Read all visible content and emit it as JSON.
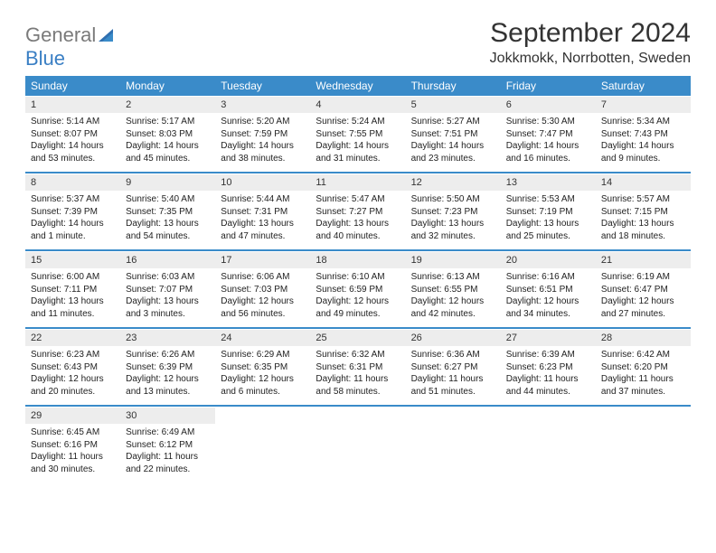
{
  "logo": {
    "general": "General",
    "blue": "Blue"
  },
  "title": "September 2024",
  "location": "Jokkmokk, Norrbotten, Sweden",
  "colors": {
    "header_bg": "#3a8bc9",
    "daynum_bg": "#ededed",
    "text": "#222222"
  },
  "weekdays": [
    "Sunday",
    "Monday",
    "Tuesday",
    "Wednesday",
    "Thursday",
    "Friday",
    "Saturday"
  ],
  "weeks": [
    [
      {
        "n": "1",
        "sr": "Sunrise: 5:14 AM",
        "ss": "Sunset: 8:07 PM",
        "dl": "Daylight: 14 hours and 53 minutes."
      },
      {
        "n": "2",
        "sr": "Sunrise: 5:17 AM",
        "ss": "Sunset: 8:03 PM",
        "dl": "Daylight: 14 hours and 45 minutes."
      },
      {
        "n": "3",
        "sr": "Sunrise: 5:20 AM",
        "ss": "Sunset: 7:59 PM",
        "dl": "Daylight: 14 hours and 38 minutes."
      },
      {
        "n": "4",
        "sr": "Sunrise: 5:24 AM",
        "ss": "Sunset: 7:55 PM",
        "dl": "Daylight: 14 hours and 31 minutes."
      },
      {
        "n": "5",
        "sr": "Sunrise: 5:27 AM",
        "ss": "Sunset: 7:51 PM",
        "dl": "Daylight: 14 hours and 23 minutes."
      },
      {
        "n": "6",
        "sr": "Sunrise: 5:30 AM",
        "ss": "Sunset: 7:47 PM",
        "dl": "Daylight: 14 hours and 16 minutes."
      },
      {
        "n": "7",
        "sr": "Sunrise: 5:34 AM",
        "ss": "Sunset: 7:43 PM",
        "dl": "Daylight: 14 hours and 9 minutes."
      }
    ],
    [
      {
        "n": "8",
        "sr": "Sunrise: 5:37 AM",
        "ss": "Sunset: 7:39 PM",
        "dl": "Daylight: 14 hours and 1 minute."
      },
      {
        "n": "9",
        "sr": "Sunrise: 5:40 AM",
        "ss": "Sunset: 7:35 PM",
        "dl": "Daylight: 13 hours and 54 minutes."
      },
      {
        "n": "10",
        "sr": "Sunrise: 5:44 AM",
        "ss": "Sunset: 7:31 PM",
        "dl": "Daylight: 13 hours and 47 minutes."
      },
      {
        "n": "11",
        "sr": "Sunrise: 5:47 AM",
        "ss": "Sunset: 7:27 PM",
        "dl": "Daylight: 13 hours and 40 minutes."
      },
      {
        "n": "12",
        "sr": "Sunrise: 5:50 AM",
        "ss": "Sunset: 7:23 PM",
        "dl": "Daylight: 13 hours and 32 minutes."
      },
      {
        "n": "13",
        "sr": "Sunrise: 5:53 AM",
        "ss": "Sunset: 7:19 PM",
        "dl": "Daylight: 13 hours and 25 minutes."
      },
      {
        "n": "14",
        "sr": "Sunrise: 5:57 AM",
        "ss": "Sunset: 7:15 PM",
        "dl": "Daylight: 13 hours and 18 minutes."
      }
    ],
    [
      {
        "n": "15",
        "sr": "Sunrise: 6:00 AM",
        "ss": "Sunset: 7:11 PM",
        "dl": "Daylight: 13 hours and 11 minutes."
      },
      {
        "n": "16",
        "sr": "Sunrise: 6:03 AM",
        "ss": "Sunset: 7:07 PM",
        "dl": "Daylight: 13 hours and 3 minutes."
      },
      {
        "n": "17",
        "sr": "Sunrise: 6:06 AM",
        "ss": "Sunset: 7:03 PM",
        "dl": "Daylight: 12 hours and 56 minutes."
      },
      {
        "n": "18",
        "sr": "Sunrise: 6:10 AM",
        "ss": "Sunset: 6:59 PM",
        "dl": "Daylight: 12 hours and 49 minutes."
      },
      {
        "n": "19",
        "sr": "Sunrise: 6:13 AM",
        "ss": "Sunset: 6:55 PM",
        "dl": "Daylight: 12 hours and 42 minutes."
      },
      {
        "n": "20",
        "sr": "Sunrise: 6:16 AM",
        "ss": "Sunset: 6:51 PM",
        "dl": "Daylight: 12 hours and 34 minutes."
      },
      {
        "n": "21",
        "sr": "Sunrise: 6:19 AM",
        "ss": "Sunset: 6:47 PM",
        "dl": "Daylight: 12 hours and 27 minutes."
      }
    ],
    [
      {
        "n": "22",
        "sr": "Sunrise: 6:23 AM",
        "ss": "Sunset: 6:43 PM",
        "dl": "Daylight: 12 hours and 20 minutes."
      },
      {
        "n": "23",
        "sr": "Sunrise: 6:26 AM",
        "ss": "Sunset: 6:39 PM",
        "dl": "Daylight: 12 hours and 13 minutes."
      },
      {
        "n": "24",
        "sr": "Sunrise: 6:29 AM",
        "ss": "Sunset: 6:35 PM",
        "dl": "Daylight: 12 hours and 6 minutes."
      },
      {
        "n": "25",
        "sr": "Sunrise: 6:32 AM",
        "ss": "Sunset: 6:31 PM",
        "dl": "Daylight: 11 hours and 58 minutes."
      },
      {
        "n": "26",
        "sr": "Sunrise: 6:36 AM",
        "ss": "Sunset: 6:27 PM",
        "dl": "Daylight: 11 hours and 51 minutes."
      },
      {
        "n": "27",
        "sr": "Sunrise: 6:39 AM",
        "ss": "Sunset: 6:23 PM",
        "dl": "Daylight: 11 hours and 44 minutes."
      },
      {
        "n": "28",
        "sr": "Sunrise: 6:42 AM",
        "ss": "Sunset: 6:20 PM",
        "dl": "Daylight: 11 hours and 37 minutes."
      }
    ],
    [
      {
        "n": "29",
        "sr": "Sunrise: 6:45 AM",
        "ss": "Sunset: 6:16 PM",
        "dl": "Daylight: 11 hours and 30 minutes."
      },
      {
        "n": "30",
        "sr": "Sunrise: 6:49 AM",
        "ss": "Sunset: 6:12 PM",
        "dl": "Daylight: 11 hours and 22 minutes."
      },
      null,
      null,
      null,
      null,
      null
    ]
  ]
}
